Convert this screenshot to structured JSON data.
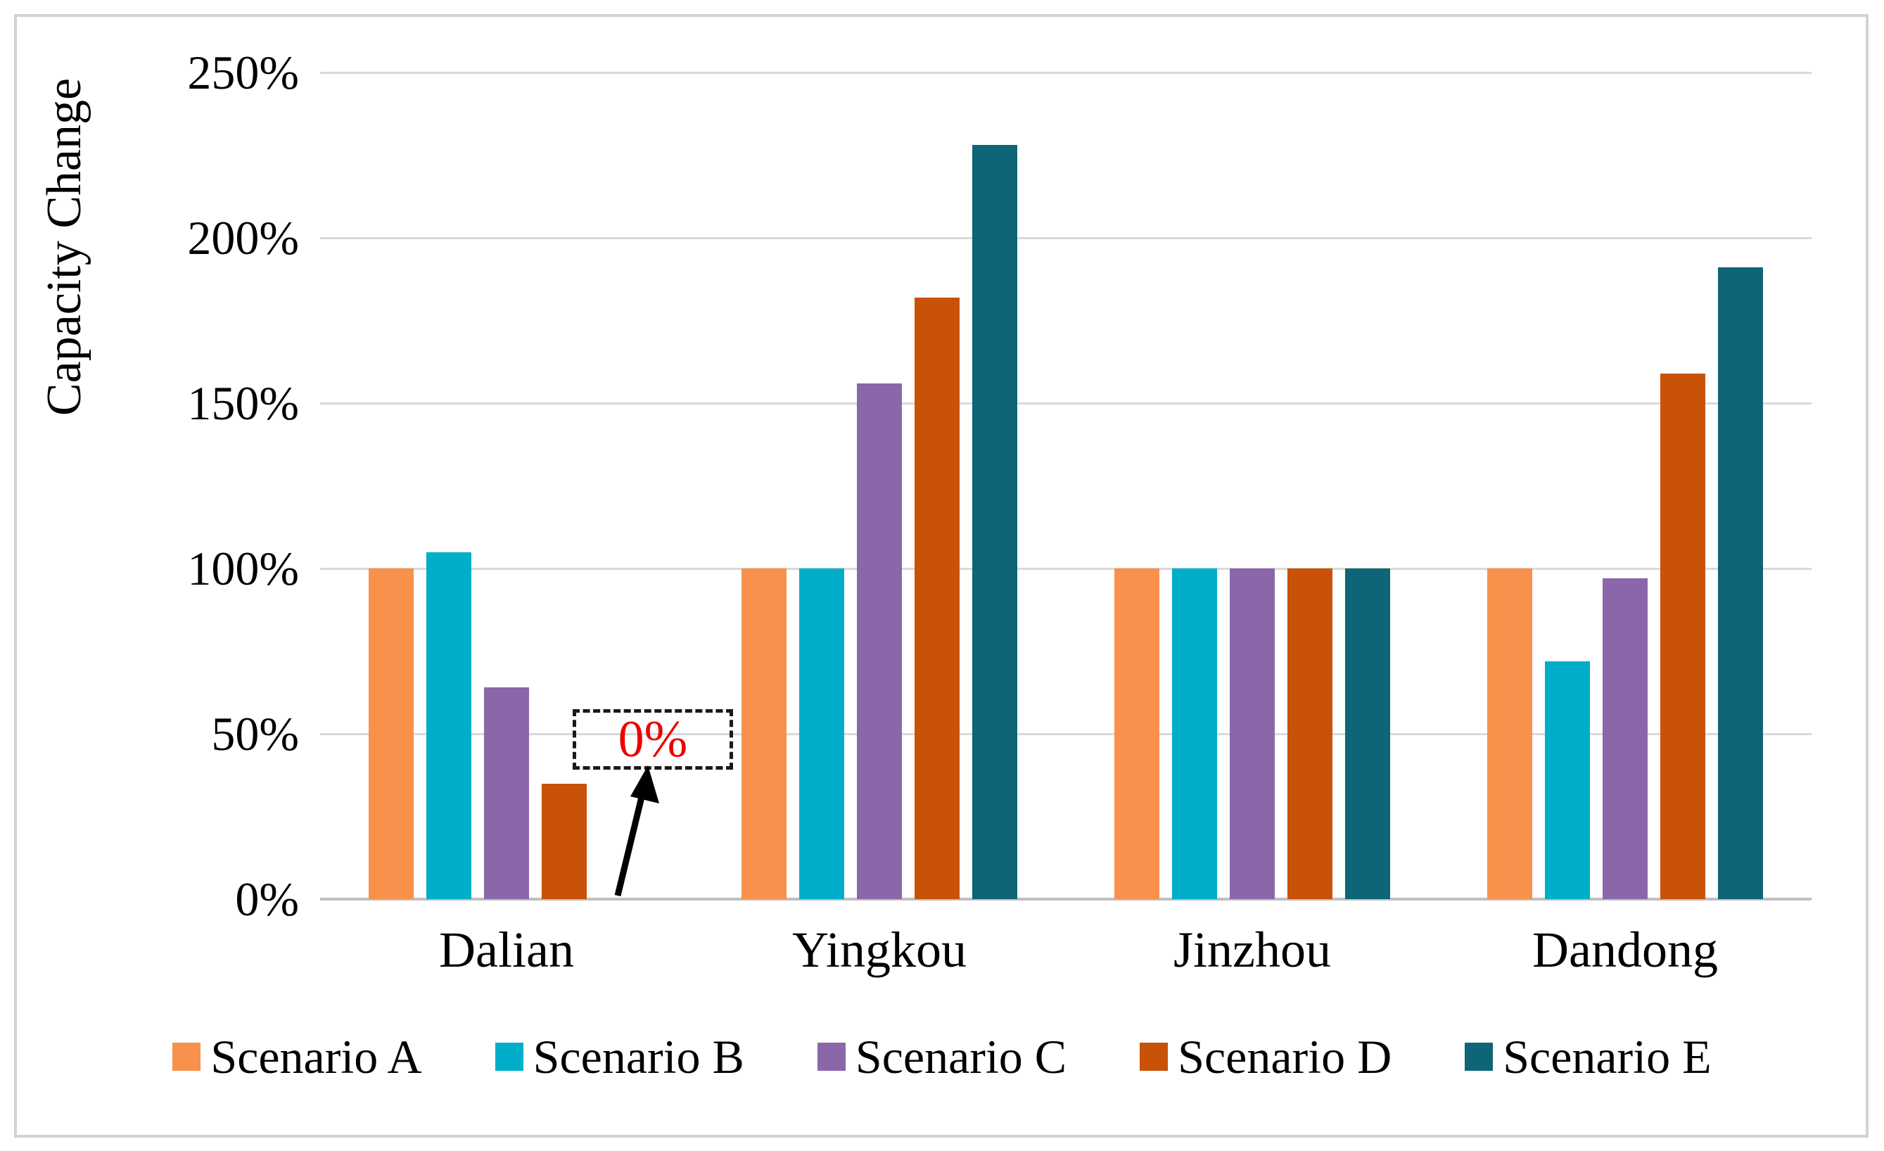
{
  "chart_data": {
    "type": "bar",
    "title": "",
    "xlabel": "",
    "ylabel": "Capacity Change",
    "categories": [
      "Dalian",
      "Yingkou",
      "Jinzhou",
      "Dandong"
    ],
    "series": [
      {
        "name": "Scenario A",
        "color": "#F8914B",
        "values": [
          100,
          100,
          100,
          100
        ]
      },
      {
        "name": "Scenario B",
        "color": "#00AEC9",
        "values": [
          105,
          100,
          100,
          72
        ]
      },
      {
        "name": "Scenario C",
        "color": "#8A67A9",
        "values": [
          64,
          156,
          100,
          97
        ]
      },
      {
        "name": "Scenario D",
        "color": "#C85208",
        "values": [
          35,
          182,
          100,
          159
        ]
      },
      {
        "name": "Scenario E",
        "color": "#0E6577",
        "values": [
          0,
          228,
          100,
          191
        ]
      }
    ],
    "ylim": [
      0,
      250
    ],
    "yticks": [
      "0%",
      "50%",
      "100%",
      "150%",
      "200%",
      "250%"
    ],
    "grid": true,
    "legend_position": "bottom",
    "annotation": {
      "text": "0%",
      "color": "#ee0000",
      "style": "red text in black dashed box with arrow",
      "points_to": "Dalian Scenario E bar (zero height)"
    }
  }
}
